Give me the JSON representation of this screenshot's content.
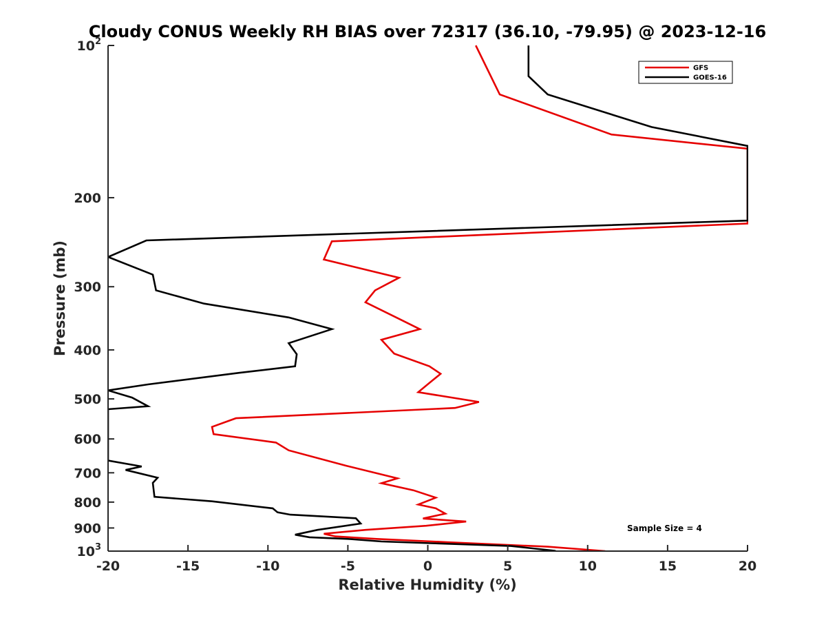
{
  "chart_data": {
    "type": "line",
    "title": "Cloudy CONUS Weekly RH BIAS over 72317 (36.10, -79.95) @ 2023-12-16",
    "xlabel": "Relative Humidity (%)",
    "ylabel": "Pressure (mb)",
    "xlim": [
      -20,
      20
    ],
    "ylim": [
      100,
      1000
    ],
    "y_scale": "log",
    "y_reversed": true,
    "grid": false,
    "legend_position": "top-right",
    "x_ticks": [
      -20,
      -15,
      -10,
      -5,
      0,
      5,
      10,
      15,
      20
    ],
    "x_tick_labels": [
      "-20",
      "-15",
      "-10",
      "-5",
      "0",
      "5",
      "10",
      "15",
      "20"
    ],
    "y_ticks": [
      {
        "value": 100,
        "base": "10",
        "exp": "2"
      },
      {
        "value": 200,
        "label": "200"
      },
      {
        "value": 300,
        "label": "300"
      },
      {
        "value": 400,
        "label": "400"
      },
      {
        "value": 500,
        "label": "500"
      },
      {
        "value": 600,
        "label": "600"
      },
      {
        "value": 700,
        "label": "700"
      },
      {
        "value": 800,
        "label": "800"
      },
      {
        "value": 900,
        "label": "900"
      },
      {
        "value": 1000,
        "base": "10",
        "exp": "3"
      }
    ],
    "series": [
      {
        "name": "GFS",
        "color": "#e60000",
        "points": [
          [
            3,
            100
          ],
          [
            4.5,
            125
          ],
          [
            11.5,
            150
          ],
          [
            20,
            160
          ],
          [
            20,
            225
          ],
          [
            -6,
            244
          ],
          [
            -6.5,
            265
          ],
          [
            -1.8,
            288
          ],
          [
            -3.3,
            305
          ],
          [
            -3.9,
            322
          ],
          [
            -1.9,
            346
          ],
          [
            -0.5,
            364
          ],
          [
            -2.9,
            382
          ],
          [
            -2.1,
            407
          ],
          [
            0.1,
            431
          ],
          [
            0.8,
            446
          ],
          [
            0.1,
            465
          ],
          [
            -0.6,
            485
          ],
          [
            3.2,
            507
          ],
          [
            1.7,
            521
          ],
          [
            -12,
            546
          ],
          [
            -13.5,
            568
          ],
          [
            -13.4,
            587
          ],
          [
            -9.5,
            610
          ],
          [
            -8.7,
            632
          ],
          [
            -5.1,
            678
          ],
          [
            -1.9,
            718
          ],
          [
            -2.9,
            734
          ],
          [
            -0.9,
            758
          ],
          [
            0.5,
            784
          ],
          [
            -0.6,
            809
          ],
          [
            0.5,
            823
          ],
          [
            1.1,
            843
          ],
          [
            -0.3,
            862
          ],
          [
            2.4,
            874
          ],
          [
            -0.1,
            891
          ],
          [
            -3.9,
            908
          ],
          [
            -6.5,
            924
          ],
          [
            -5.8,
            935
          ],
          [
            -3.2,
            946
          ],
          [
            1.2,
            960
          ],
          [
            7.5,
            980
          ],
          [
            11.1,
            1000
          ]
        ]
      },
      {
        "name": "GOES-16",
        "color": "#000000",
        "points": [
          [
            6.3,
            100
          ],
          [
            6.3,
            115
          ],
          [
            7.5,
            125
          ],
          [
            14,
            145
          ],
          [
            20,
            158
          ],
          [
            20,
            222
          ],
          [
            -17.6,
            243
          ],
          [
            -20,
            262
          ],
          [
            -17.2,
            284
          ],
          [
            -17,
            305
          ],
          [
            -14,
            324
          ],
          [
            -8.7,
            345
          ],
          [
            -6,
            364
          ],
          [
            -8.7,
            388
          ],
          [
            -8.2,
            408
          ],
          [
            -8.3,
            431
          ],
          [
            -11.8,
            444
          ],
          [
            -17.5,
            468
          ],
          [
            -20,
            481
          ],
          [
            -18.5,
            497
          ],
          [
            -17.5,
            517
          ],
          [
            -20,
            524
          ],
          [
            -20,
            662
          ],
          [
            -17.9,
            680
          ],
          [
            -18.9,
            691
          ],
          [
            -16.9,
            716
          ],
          [
            -17.2,
            733
          ],
          [
            -17.1,
            781
          ],
          [
            -13.5,
            797
          ],
          [
            -9.7,
            823
          ],
          [
            -9.4,
            838
          ],
          [
            -8.6,
            847
          ],
          [
            -4.5,
            861
          ],
          [
            -4.2,
            882
          ],
          [
            -6.9,
            908
          ],
          [
            -8.3,
            928
          ],
          [
            -7.4,
            939
          ],
          [
            -5,
            946
          ],
          [
            -2.9,
            957
          ],
          [
            2,
            969
          ],
          [
            5.2,
            977
          ],
          [
            8,
            999
          ]
        ]
      }
    ],
    "annotation": "Sample Size = 4"
  }
}
